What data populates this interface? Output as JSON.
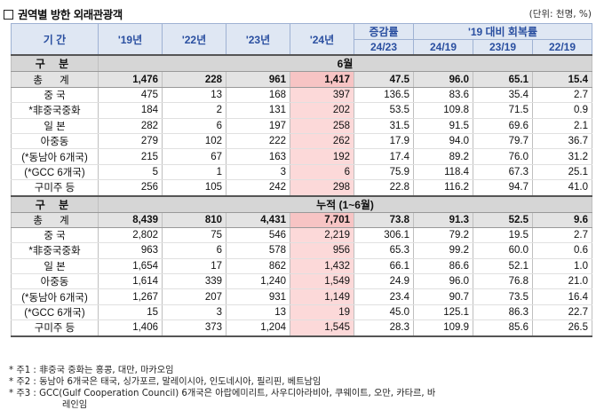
{
  "title": "권역별 방한 외래관광객",
  "unit": "(단위: 천명, %)",
  "headers": {
    "period": "기 간",
    "y19": "'19년",
    "y22": "'22년",
    "y23": "'23년",
    "y24": "'24년",
    "growth": "증감률",
    "growth_sub": "24/23",
    "recovery": "'19 대비 회복률",
    "r1": "24/19",
    "r2": "23/19",
    "r3": "22/19"
  },
  "sections": [
    {
      "label": "구 분",
      "title": "6월",
      "rows": [
        {
          "name": "총 계",
          "v": [
            "1,476",
            "228",
            "961",
            "1,417",
            "47.5",
            "96.0",
            "65.1",
            "15.4"
          ]
        },
        {
          "name": "중 국",
          "v": [
            "475",
            "13",
            "168",
            "397",
            "136.5",
            "83.6",
            "35.4",
            "2.7"
          ]
        },
        {
          "name": "*非중국중화",
          "v": [
            "184",
            "2",
            "131",
            "202",
            "53.5",
            "109.8",
            "71.5",
            "0.9"
          ]
        },
        {
          "name": "일 본",
          "v": [
            "282",
            "6",
            "197",
            "258",
            "31.5",
            "91.5",
            "69.6",
            "2.1"
          ]
        },
        {
          "name": "아중동",
          "v": [
            "279",
            "102",
            "222",
            "262",
            "17.9",
            "94.0",
            "79.7",
            "36.7"
          ]
        },
        {
          "name": "(*동남아 6개국)",
          "v": [
            "215",
            "67",
            "163",
            "192",
            "17.4",
            "89.2",
            "76.0",
            "31.2"
          ]
        },
        {
          "name": "(*GCC 6개국)",
          "v": [
            "5",
            "1",
            "3",
            "6",
            "75.9",
            "118.4",
            "67.3",
            "25.1"
          ]
        },
        {
          "name": "구미주 등",
          "v": [
            "256",
            "105",
            "242",
            "298",
            "22.8",
            "116.2",
            "94.7",
            "41.0"
          ]
        }
      ]
    },
    {
      "label": "구 분",
      "title": "누적 (1~6월)",
      "rows": [
        {
          "name": "총 계",
          "v": [
            "8,439",
            "810",
            "4,431",
            "7,701",
            "73.8",
            "91.3",
            "52.5",
            "9.6"
          ]
        },
        {
          "name": "중 국",
          "v": [
            "2,802",
            "75",
            "546",
            "2,219",
            "306.1",
            "79.2",
            "19.5",
            "2.7"
          ]
        },
        {
          "name": "*非중국중화",
          "v": [
            "963",
            "6",
            "578",
            "956",
            "65.3",
            "99.2",
            "60.0",
            "0.6"
          ]
        },
        {
          "name": "일 본",
          "v": [
            "1,654",
            "17",
            "862",
            "1,432",
            "66.1",
            "86.6",
            "52.1",
            "1.0"
          ]
        },
        {
          "name": "아중동",
          "v": [
            "1,614",
            "339",
            "1,240",
            "1,549",
            "24.9",
            "96.0",
            "76.8",
            "21.0"
          ]
        },
        {
          "name": "(*동남아 6개국)",
          "v": [
            "1,267",
            "207",
            "931",
            "1,149",
            "23.4",
            "90.7",
            "73.5",
            "16.4"
          ]
        },
        {
          "name": "(*GCC 6개국)",
          "v": [
            "15",
            "3",
            "13",
            "19",
            "45.0",
            "125.1",
            "86.3",
            "22.7"
          ]
        },
        {
          "name": "구미주 등",
          "v": [
            "1,406",
            "373",
            "1,204",
            "1,545",
            "28.3",
            "109.9",
            "85.6",
            "26.5"
          ]
        }
      ]
    }
  ],
  "notes": [
    "* 주1 : 非중국 중화는 홍콩, 대만, 마카오임",
    "* 주2 : 동남아 6개국은 태국, 싱가포르, 말레이시아, 인도네시아, 필리핀, 베트남임",
    "* 주3 : GCC(Gulf Cooperation Council) 6개국은 아랍에미리트, 사우디아라비아, 쿠웨이트, 오만, 카타르, 바",
    "레인임"
  ]
}
